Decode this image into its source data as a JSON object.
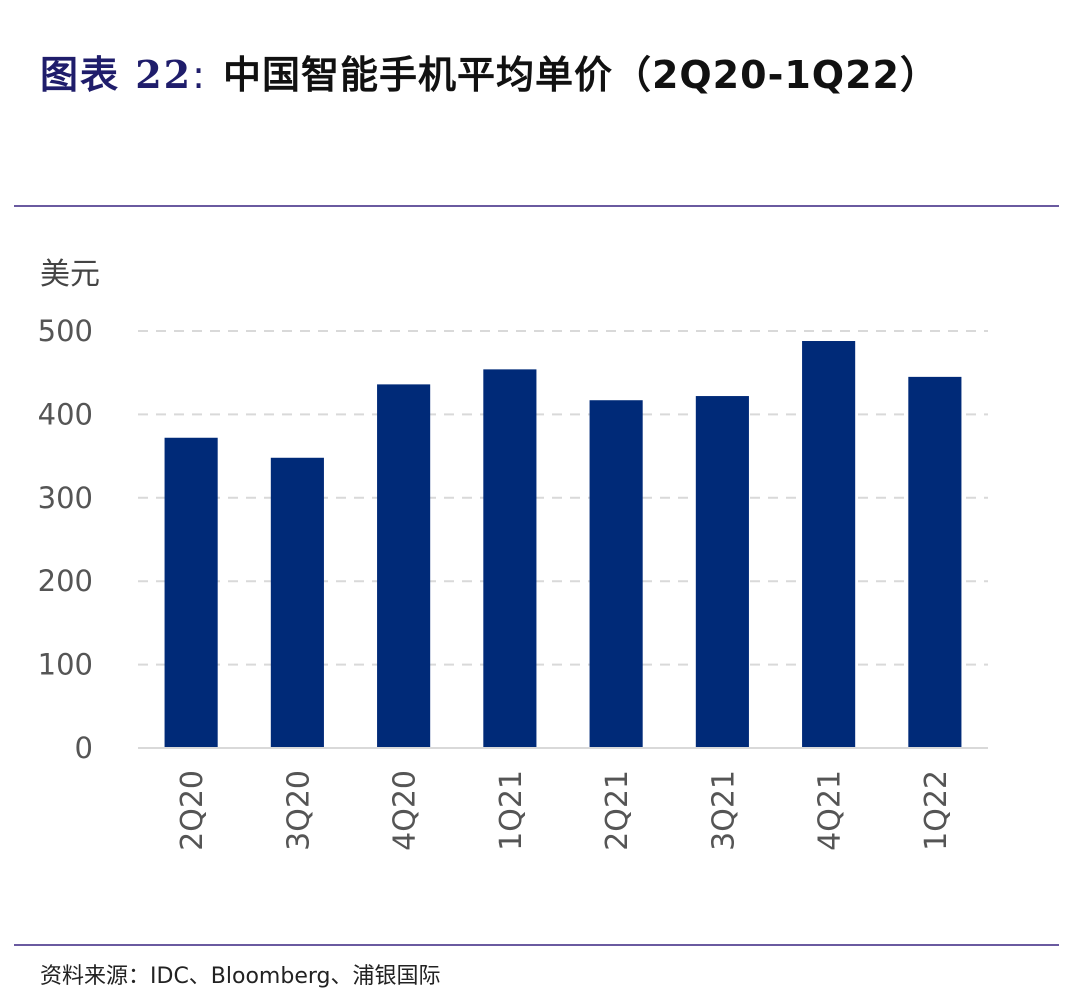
{
  "figure": {
    "prefix": "图表 22",
    "separator": ":",
    "title": "中国智能手机平均单价（2Q20-1Q22）"
  },
  "source": {
    "label": "资料来源：",
    "text": "IDC、Bloomberg、浦银国际"
  },
  "colors": {
    "bar": "#002a78",
    "title_prefix": "#1f1d6b",
    "rule": "#6a5aa0",
    "grid": "#d9d9d9",
    "axis": "#d9d9d9"
  },
  "chart_data": {
    "type": "bar",
    "title": "中国智能手机平均单价（2Q20-1Q22）",
    "ylabel": "美元",
    "xlabel": "",
    "categories": [
      "2Q20",
      "3Q20",
      "4Q20",
      "1Q21",
      "2Q21",
      "3Q21",
      "4Q21",
      "1Q22"
    ],
    "values": [
      372,
      348,
      436,
      454,
      417,
      422,
      488,
      445
    ],
    "ylim": [
      0,
      500
    ],
    "yticks": [
      0,
      100,
      200,
      300,
      400,
      500
    ],
    "grid": "dashed horizontal",
    "legend": "none",
    "x_tick_rotation": "vertical"
  }
}
